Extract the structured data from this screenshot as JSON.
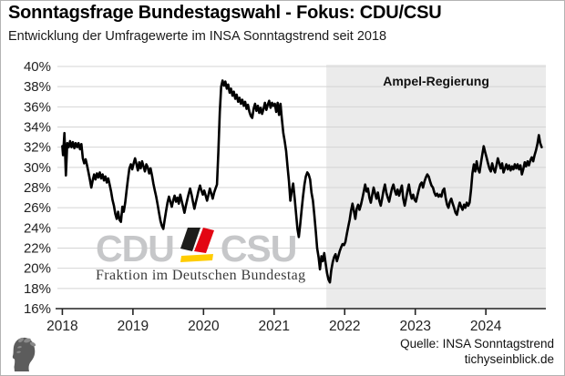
{
  "header": {
    "title": "Sonntagsfrage Bundestagswahl - Fokus: CDU/CSU",
    "subtitle": "Entwicklung der Umfragewerte im INSA Sonntagstrend seit 2018"
  },
  "chart_data": {
    "type": "line",
    "series_name": "CDU/CSU",
    "unit": "%",
    "grid": true,
    "xlim": [
      2017.93,
      2024.85
    ],
    "ylim": [
      16,
      40
    ],
    "x_ticks": [
      2018,
      2019,
      2020,
      2021,
      2022,
      2023,
      2024
    ],
    "y_ticks": [
      16,
      18,
      20,
      22,
      24,
      26,
      28,
      30,
      32,
      34,
      36,
      38,
      40
    ],
    "y_tick_suffix": "%",
    "line_color": "#000000",
    "grid_color": "#d4d4d4",
    "axis_color": "#222222",
    "annotation": {
      "label": "Ampel-Regierung",
      "region_start": 2021.74,
      "region_end": 2024.85,
      "color": "#ebebeb"
    },
    "points": [
      [
        2018.0,
        32.1
      ],
      [
        2018.01,
        31.2
      ],
      [
        2018.03,
        33.4
      ],
      [
        2018.04,
        31.3
      ],
      [
        2018.05,
        29.2
      ],
      [
        2018.07,
        32.4
      ],
      [
        2018.09,
        32.0
      ],
      [
        2018.11,
        32.6
      ],
      [
        2018.13,
        32.0
      ],
      [
        2018.15,
        32.5
      ],
      [
        2018.17,
        31.9
      ],
      [
        2018.19,
        32.4
      ],
      [
        2018.21,
        32.0
      ],
      [
        2018.23,
        32.4
      ],
      [
        2018.25,
        31.8
      ],
      [
        2018.27,
        32.3
      ],
      [
        2018.29,
        30.9
      ],
      [
        2018.31,
        30.4
      ],
      [
        2018.33,
        30.8
      ],
      [
        2018.35,
        30.2
      ],
      [
        2018.37,
        29.5
      ],
      [
        2018.39,
        28.8
      ],
      [
        2018.41,
        28.0
      ],
      [
        2018.43,
        28.7
      ],
      [
        2018.45,
        29.3
      ],
      [
        2018.47,
        28.8
      ],
      [
        2018.49,
        29.4
      ],
      [
        2018.51,
        29.0
      ],
      [
        2018.53,
        29.5
      ],
      [
        2018.55,
        28.9
      ],
      [
        2018.57,
        29.3
      ],
      [
        2018.59,
        28.7
      ],
      [
        2018.61,
        29.1
      ],
      [
        2018.63,
        28.5
      ],
      [
        2018.65,
        28.9
      ],
      [
        2018.67,
        28.3
      ],
      [
        2018.69,
        27.6
      ],
      [
        2018.71,
        26.8
      ],
      [
        2018.73,
        26.2
      ],
      [
        2018.75,
        25.4
      ],
      [
        2018.77,
        24.9
      ],
      [
        2018.79,
        25.6
      ],
      [
        2018.81,
        24.8
      ],
      [
        2018.83,
        24.6
      ],
      [
        2018.85,
        26.1
      ],
      [
        2018.87,
        25.6
      ],
      [
        2018.89,
        26.5
      ],
      [
        2018.91,
        27.7
      ],
      [
        2018.93,
        28.9
      ],
      [
        2018.95,
        29.9
      ],
      [
        2018.97,
        30.3
      ],
      [
        2018.99,
        29.8
      ],
      [
        2019.01,
        30.4
      ],
      [
        2019.03,
        30.9
      ],
      [
        2019.05,
        30.3
      ],
      [
        2019.07,
        29.7
      ],
      [
        2019.09,
        30.5
      ],
      [
        2019.11,
        29.9
      ],
      [
        2019.13,
        30.6
      ],
      [
        2019.15,
        30.1
      ],
      [
        2019.17,
        29.6
      ],
      [
        2019.19,
        30.3
      ],
      [
        2019.21,
        30.0
      ],
      [
        2019.23,
        29.4
      ],
      [
        2019.25,
        29.9
      ],
      [
        2019.27,
        29.2
      ],
      [
        2019.29,
        28.4
      ],
      [
        2019.31,
        27.7
      ],
      [
        2019.33,
        27.1
      ],
      [
        2019.35,
        26.3
      ],
      [
        2019.37,
        25.5
      ],
      [
        2019.39,
        24.7
      ],
      [
        2019.41,
        24.2
      ],
      [
        2019.43,
        23.9
      ],
      [
        2019.45,
        24.8
      ],
      [
        2019.47,
        25.7
      ],
      [
        2019.49,
        26.5
      ],
      [
        2019.51,
        27.1
      ],
      [
        2019.53,
        26.6
      ],
      [
        2019.55,
        26.1
      ],
      [
        2019.57,
        26.7
      ],
      [
        2019.59,
        27.2
      ],
      [
        2019.61,
        26.6
      ],
      [
        2019.63,
        27.0
      ],
      [
        2019.65,
        26.4
      ],
      [
        2019.67,
        27.3
      ],
      [
        2019.69,
        26.7
      ],
      [
        2019.71,
        26.1
      ],
      [
        2019.73,
        25.5
      ],
      [
        2019.75,
        26.2
      ],
      [
        2019.77,
        26.8
      ],
      [
        2019.79,
        27.4
      ],
      [
        2019.81,
        27.9
      ],
      [
        2019.83,
        27.3
      ],
      [
        2019.85,
        26.6
      ],
      [
        2019.87,
        25.9
      ],
      [
        2019.89,
        26.5
      ],
      [
        2019.91,
        27.1
      ],
      [
        2019.93,
        27.7
      ],
      [
        2019.95,
        28.2
      ],
      [
        2019.97,
        27.7
      ],
      [
        2019.99,
        27.3
      ],
      [
        2020.01,
        27.7
      ],
      [
        2020.03,
        27.2
      ],
      [
        2020.05,
        26.7
      ],
      [
        2020.07,
        27.3
      ],
      [
        2020.09,
        27.9
      ],
      [
        2020.11,
        27.4
      ],
      [
        2020.13,
        26.9
      ],
      [
        2020.15,
        27.5
      ],
      [
        2020.17,
        27.9
      ],
      [
        2020.19,
        28.3
      ],
      [
        2020.21,
        31.5
      ],
      [
        2020.23,
        35.5
      ],
      [
        2020.25,
        38.0
      ],
      [
        2020.27,
        38.6
      ],
      [
        2020.29,
        38.1
      ],
      [
        2020.31,
        38.5
      ],
      [
        2020.33,
        37.8
      ],
      [
        2020.35,
        38.2
      ],
      [
        2020.37,
        37.4
      ],
      [
        2020.39,
        37.8
      ],
      [
        2020.41,
        37.1
      ],
      [
        2020.43,
        37.5
      ],
      [
        2020.45,
        36.8
      ],
      [
        2020.47,
        37.2
      ],
      [
        2020.49,
        36.5
      ],
      [
        2020.51,
        36.9
      ],
      [
        2020.53,
        36.3
      ],
      [
        2020.55,
        36.7
      ],
      [
        2020.57,
        36.1
      ],
      [
        2020.59,
        36.5
      ],
      [
        2020.61,
        35.8
      ],
      [
        2020.63,
        36.2
      ],
      [
        2020.65,
        35.5
      ],
      [
        2020.67,
        35.1
      ],
      [
        2020.69,
        34.9
      ],
      [
        2020.71,
        35.8
      ],
      [
        2020.73,
        36.3
      ],
      [
        2020.75,
        35.6
      ],
      [
        2020.77,
        36.1
      ],
      [
        2020.79,
        35.4
      ],
      [
        2020.81,
        35.9
      ],
      [
        2020.83,
        35.3
      ],
      [
        2020.85,
        35.8
      ],
      [
        2020.87,
        36.4
      ],
      [
        2020.89,
        35.7
      ],
      [
        2020.91,
        36.2
      ],
      [
        2020.93,
        36.6
      ],
      [
        2020.95,
        35.9
      ],
      [
        2020.97,
        36.4
      ],
      [
        2020.99,
        36.1
      ],
      [
        2021.01,
        36.3
      ],
      [
        2021.03,
        35.5
      ],
      [
        2021.05,
        36.4
      ],
      [
        2021.07,
        35.2
      ],
      [
        2021.09,
        36.3
      ],
      [
        2021.11,
        34.8
      ],
      [
        2021.13,
        33.4
      ],
      [
        2021.15,
        32.6
      ],
      [
        2021.17,
        31.6
      ],
      [
        2021.19,
        30.1
      ],
      [
        2021.21,
        28.6
      ],
      [
        2021.23,
        26.7
      ],
      [
        2021.25,
        27.7
      ],
      [
        2021.27,
        28.4
      ],
      [
        2021.29,
        27.0
      ],
      [
        2021.31,
        25.5
      ],
      [
        2021.33,
        23.9
      ],
      [
        2021.35,
        23.1
      ],
      [
        2021.37,
        24.4
      ],
      [
        2021.39,
        25.8
      ],
      [
        2021.41,
        27.1
      ],
      [
        2021.43,
        28.3
      ],
      [
        2021.45,
        29.1
      ],
      [
        2021.47,
        29.5
      ],
      [
        2021.49,
        29.3
      ],
      [
        2021.51,
        28.8
      ],
      [
        2021.53,
        27.5
      ],
      [
        2021.55,
        26.7
      ],
      [
        2021.57,
        25.3
      ],
      [
        2021.59,
        23.7
      ],
      [
        2021.61,
        22.0
      ],
      [
        2021.63,
        21.1
      ],
      [
        2021.65,
        19.9
      ],
      [
        2021.67,
        21.2
      ],
      [
        2021.69,
        20.7
      ],
      [
        2021.71,
        21.5
      ],
      [
        2021.73,
        20.5
      ],
      [
        2021.75,
        19.5
      ],
      [
        2021.77,
        18.9
      ],
      [
        2021.79,
        18.6
      ],
      [
        2021.81,
        19.8
      ],
      [
        2021.83,
        20.6
      ],
      [
        2021.85,
        21.1
      ],
      [
        2021.87,
        21.4
      ],
      [
        2021.89,
        20.7
      ],
      [
        2021.91,
        21.2
      ],
      [
        2021.93,
        21.7
      ],
      [
        2021.95,
        22.1
      ],
      [
        2021.97,
        22.4
      ],
      [
        2021.99,
        22.3
      ],
      [
        2022.01,
        22.6
      ],
      [
        2022.03,
        23.4
      ],
      [
        2022.05,
        24.1
      ],
      [
        2022.07,
        24.8
      ],
      [
        2022.09,
        25.7
      ],
      [
        2022.11,
        26.4
      ],
      [
        2022.13,
        25.7
      ],
      [
        2022.15,
        24.9
      ],
      [
        2022.17,
        25.9
      ],
      [
        2022.19,
        26.3
      ],
      [
        2022.21,
        25.8
      ],
      [
        2022.23,
        26.3
      ],
      [
        2022.25,
        26.9
      ],
      [
        2022.27,
        27.6
      ],
      [
        2022.29,
        28.3
      ],
      [
        2022.31,
        27.6
      ],
      [
        2022.33,
        27.9
      ],
      [
        2022.35,
        27.0
      ],
      [
        2022.37,
        26.5
      ],
      [
        2022.39,
        27.3
      ],
      [
        2022.41,
        28.0
      ],
      [
        2022.43,
        27.4
      ],
      [
        2022.45,
        26.9
      ],
      [
        2022.47,
        27.5
      ],
      [
        2022.49,
        26.7
      ],
      [
        2022.51,
        26.2
      ],
      [
        2022.53,
        26.9
      ],
      [
        2022.55,
        27.7
      ],
      [
        2022.57,
        28.3
      ],
      [
        2022.59,
        27.5
      ],
      [
        2022.61,
        27.0
      ],
      [
        2022.63,
        26.6
      ],
      [
        2022.65,
        27.3
      ],
      [
        2022.67,
        27.9
      ],
      [
        2022.69,
        28.3
      ],
      [
        2022.71,
        27.7
      ],
      [
        2022.73,
        27.3
      ],
      [
        2022.75,
        27.8
      ],
      [
        2022.77,
        27.2
      ],
      [
        2022.79,
        27.7
      ],
      [
        2022.81,
        28.2
      ],
      [
        2022.83,
        26.9
      ],
      [
        2022.85,
        26.2
      ],
      [
        2022.87,
        26.9
      ],
      [
        2022.89,
        27.7
      ],
      [
        2022.91,
        28.3
      ],
      [
        2022.93,
        27.4
      ],
      [
        2022.95,
        26.9
      ],
      [
        2022.97,
        27.3
      ],
      [
        2022.99,
        26.8
      ],
      [
        2023.01,
        26.6
      ],
      [
        2023.03,
        27.2
      ],
      [
        2023.05,
        27.8
      ],
      [
        2023.07,
        28.3
      ],
      [
        2023.09,
        28.5
      ],
      [
        2023.11,
        28.0
      ],
      [
        2023.13,
        28.6
      ],
      [
        2023.15,
        29.0
      ],
      [
        2023.17,
        29.3
      ],
      [
        2023.19,
        29.1
      ],
      [
        2023.21,
        28.6
      ],
      [
        2023.23,
        28.2
      ],
      [
        2023.25,
        28.0
      ],
      [
        2023.27,
        27.5
      ],
      [
        2023.29,
        27.2
      ],
      [
        2023.31,
        27.4
      ],
      [
        2023.33,
        27.1
      ],
      [
        2023.35,
        27.3
      ],
      [
        2023.37,
        27.1
      ],
      [
        2023.39,
        27.7
      ],
      [
        2023.41,
        27.9
      ],
      [
        2023.43,
        27.0
      ],
      [
        2023.45,
        26.3
      ],
      [
        2023.47,
        26.0
      ],
      [
        2023.49,
        26.6
      ],
      [
        2023.51,
        26.9
      ],
      [
        2023.53,
        26.4
      ],
      [
        2023.55,
        26.0
      ],
      [
        2023.57,
        25.5
      ],
      [
        2023.59,
        25.3
      ],
      [
        2023.61,
        26.0
      ],
      [
        2023.63,
        26.5
      ],
      [
        2023.65,
        26.1
      ],
      [
        2023.67,
        25.8
      ],
      [
        2023.69,
        26.3
      ],
      [
        2023.71,
        26.0
      ],
      [
        2023.73,
        26.5
      ],
      [
        2023.75,
        26.2
      ],
      [
        2023.77,
        26.5
      ],
      [
        2023.79,
        27.8
      ],
      [
        2023.81,
        29.4
      ],
      [
        2023.83,
        30.3
      ],
      [
        2023.85,
        29.6
      ],
      [
        2023.87,
        30.6
      ],
      [
        2023.89,
        29.8
      ],
      [
        2023.91,
        29.5
      ],
      [
        2023.93,
        30.4
      ],
      [
        2023.95,
        31.3
      ],
      [
        2023.97,
        32.1
      ],
      [
        2023.99,
        31.5
      ],
      [
        2024.01,
        31.0
      ],
      [
        2024.03,
        30.4
      ],
      [
        2024.05,
        29.9
      ],
      [
        2024.07,
        29.6
      ],
      [
        2024.09,
        30.4
      ],
      [
        2024.11,
        29.8
      ],
      [
        2024.13,
        29.5
      ],
      [
        2024.15,
        30.2
      ],
      [
        2024.17,
        30.9
      ],
      [
        2024.19,
        30.4
      ],
      [
        2024.21,
        29.9
      ],
      [
        2024.23,
        30.4
      ],
      [
        2024.25,
        29.5
      ],
      [
        2024.27,
        29.9
      ],
      [
        2024.29,
        30.3
      ],
      [
        2024.31,
        29.8
      ],
      [
        2024.33,
        30.2
      ],
      [
        2024.35,
        29.7
      ],
      [
        2024.37,
        30.1
      ],
      [
        2024.39,
        29.8
      ],
      [
        2024.41,
        30.3
      ],
      [
        2024.43,
        29.9
      ],
      [
        2024.45,
        30.3
      ],
      [
        2024.47,
        29.8
      ],
      [
        2024.49,
        30.2
      ],
      [
        2024.51,
        29.3
      ],
      [
        2024.53,
        29.8
      ],
      [
        2024.55,
        30.5
      ],
      [
        2024.57,
        30.1
      ],
      [
        2024.59,
        30.6
      ],
      [
        2024.61,
        30.2
      ],
      [
        2024.63,
        30.7
      ],
      [
        2024.65,
        31.0
      ],
      [
        2024.67,
        30.6
      ],
      [
        2024.69,
        31.2
      ],
      [
        2024.71,
        31.7
      ],
      [
        2024.73,
        32.3
      ],
      [
        2024.75,
        33.2
      ],
      [
        2024.77,
        32.4
      ],
      [
        2024.79,
        32.0
      ]
    ]
  },
  "watermark": {
    "cdu": "CDU",
    "csu": "CSU",
    "caption": "Fraktion im Deutschen Bundestag",
    "text_color": "#c6c7c9",
    "flag_black": "#1d1d1b",
    "flag_red": "#e30613",
    "flag_gold": "#ffcc00"
  },
  "footer": {
    "source": "Quelle: INSA Sonntagstrend",
    "site": "tichyseinblick.de"
  }
}
